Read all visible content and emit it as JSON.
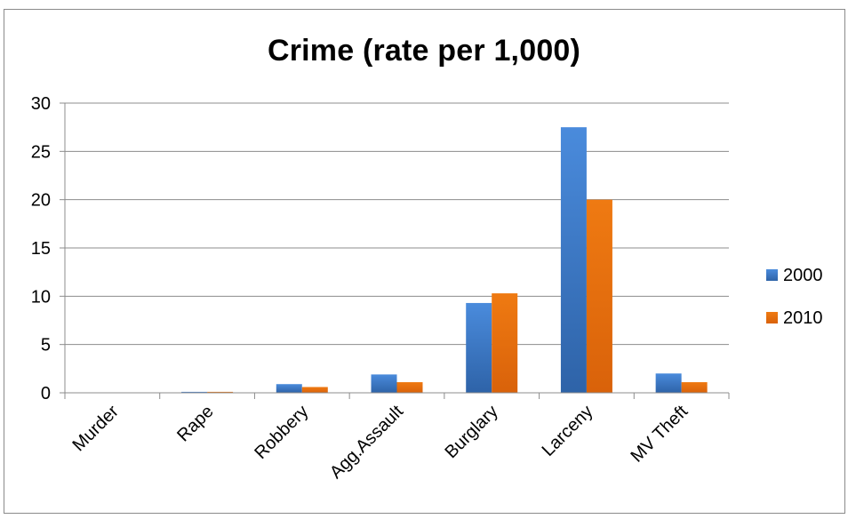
{
  "chart_data": {
    "type": "bar",
    "title": "Crime (rate per 1,000)",
    "xlabel": "",
    "ylabel": "",
    "ylim": [
      0,
      30
    ],
    "yticks": [
      0,
      5,
      10,
      15,
      20,
      25,
      30
    ],
    "grid": true,
    "legend_position": "right",
    "categories": [
      "Murder",
      "Rape",
      "Robbery",
      "Agg.Assault",
      "Burglary",
      "Larceny",
      "MV Theft"
    ],
    "series": [
      {
        "name": "2000",
        "color": "#3A78C8",
        "values": [
          0.0,
          0.1,
          0.9,
          1.9,
          9.3,
          27.5,
          2.0
        ]
      },
      {
        "name": "2010",
        "color": "#E36C0A",
        "values": [
          0.0,
          0.1,
          0.6,
          1.1,
          10.3,
          20.0,
          1.1
        ]
      }
    ]
  }
}
